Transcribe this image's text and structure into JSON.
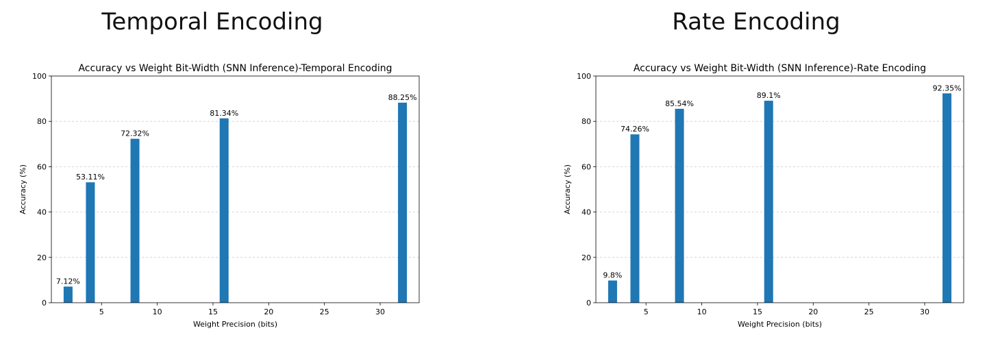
{
  "panels": [
    {
      "heading": "Temporal Encoding"
    },
    {
      "heading": "Rate Encoding"
    }
  ],
  "colors": {
    "bar": "#1f77b4",
    "grid": "#cccccc",
    "axis": "#000000"
  },
  "chart_data": [
    {
      "type": "bar",
      "title": "Accuracy vs Weight Bit-Width (SNN Inference)-Temporal Encoding",
      "xlabel": "Weight Precision (bits)",
      "ylabel": "Accuracy (%)",
      "x": [
        2,
        4,
        8,
        16,
        32
      ],
      "values": [
        7.12,
        53.11,
        72.32,
        81.34,
        88.25
      ],
      "data_labels": [
        "7.12%",
        "53.11%",
        "72.32%",
        "81.34%",
        "88.25%"
      ],
      "xticks": [
        5,
        10,
        15,
        20,
        25,
        30
      ],
      "yticks": [
        0,
        20,
        40,
        60,
        80,
        100
      ],
      "xlim": [
        0.5,
        33.5
      ],
      "ylim": [
        0,
        100
      ],
      "grid": "y-dashed"
    },
    {
      "type": "bar",
      "title": "Accuracy vs Weight Bit-Width (SNN Inference)-Rate Encoding",
      "xlabel": "Weight Precision (bits)",
      "ylabel": "Accuracy (%)",
      "x": [
        2,
        4,
        8,
        16,
        32
      ],
      "values": [
        9.8,
        74.26,
        85.54,
        89.1,
        92.35
      ],
      "data_labels": [
        "9.8%",
        "74.26%",
        "85.54%",
        "89.1%",
        "92.35%"
      ],
      "xticks": [
        5,
        10,
        15,
        20,
        25,
        30
      ],
      "yticks": [
        0,
        20,
        40,
        60,
        80,
        100
      ],
      "xlim": [
        0.5,
        33.5
      ],
      "ylim": [
        0,
        100
      ],
      "grid": "y-dashed"
    }
  ]
}
